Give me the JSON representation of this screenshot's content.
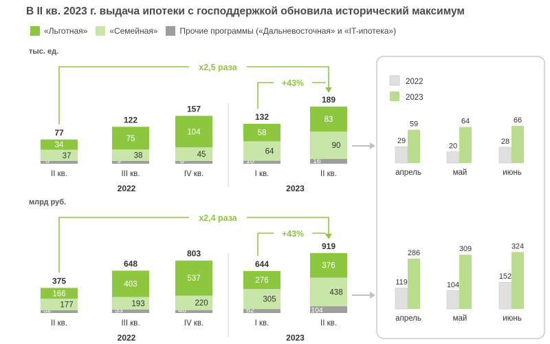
{
  "title": "В II кв. 2023 г. выдача ипотеки с господдержкой обновила исторический максимум",
  "legend": {
    "lgot": "«Льготная»",
    "fam": "«Семейная»",
    "other": "Прочие программы («Дальневосточная» и «IT-ипотека»)"
  },
  "colors": {
    "lgot": "#8dc63f",
    "fam": "#c8e6a8",
    "other": "#9e9e9e",
    "y2022": "#e0e0e0",
    "y2023": "#b9dc8f",
    "accent": "#8dc63f",
    "border": "#bdbdbd",
    "arrow": "#c0c0c0"
  },
  "chart_data": [
    {
      "type": "bar",
      "unit": "тыс. ед.",
      "categories": [
        "II кв.",
        "III кв.",
        "IV кв.",
        "I кв.",
        "II кв."
      ],
      "years": [
        {
          "label": "2022",
          "span": [
            0,
            2
          ]
        },
        {
          "label": "2023",
          "span": [
            3,
            4
          ]
        }
      ],
      "series": [
        {
          "name": "«Прочие программы»",
          "values": [
            6,
            9,
            8,
            10,
            16
          ]
        },
        {
          "name": "«Семейная»",
          "values": [
            37,
            38,
            45,
            64,
            90
          ]
        },
        {
          "name": "«Льготная»",
          "values": [
            34,
            75,
            104,
            58,
            83
          ]
        }
      ],
      "totals": [
        77,
        122,
        157,
        132,
        189
      ],
      "annotations": [
        {
          "text": "х2,5 раза",
          "from": 0,
          "to": 4
        },
        {
          "text": "+43%",
          "from": 3,
          "to": 4
        }
      ]
    },
    {
      "type": "bar",
      "unit": "млрд руб.",
      "categories": [
        "II кв.",
        "III кв.",
        "IV кв.",
        "I кв.",
        "II кв."
      ],
      "years": [
        {
          "label": "2022",
          "span": [
            0,
            2
          ]
        },
        {
          "label": "2023",
          "span": [
            3,
            4
          ]
        }
      ],
      "series": [
        {
          "name": "«Прочие программы»",
          "values": [
            32,
            53,
            46,
            62,
            104
          ]
        },
        {
          "name": "«Семейная»",
          "values": [
            177,
            193,
            220,
            305,
            438
          ]
        },
        {
          "name": "«Льготная»",
          "values": [
            166,
            403,
            537,
            276,
            376
          ]
        }
      ],
      "totals": [
        375,
        648,
        803,
        644,
        919
      ],
      "annotations": [
        {
          "text": "х2,4 раза",
          "from": 0,
          "to": 4
        },
        {
          "text": "+43%",
          "from": 3,
          "to": 4
        }
      ]
    },
    {
      "type": "bar",
      "categories": [
        "апрель",
        "май",
        "июнь"
      ],
      "series": [
        {
          "name": "2022",
          "values": [
            29,
            20,
            28
          ]
        },
        {
          "name": "2023",
          "values": [
            59,
            64,
            66
          ]
        }
      ]
    },
    {
      "type": "bar",
      "categories": [
        "апрель",
        "май",
        "июнь"
      ],
      "series": [
        {
          "name": "2022",
          "values": [
            119,
            104,
            152
          ]
        },
        {
          "name": "2023",
          "values": [
            286,
            309,
            324
          ]
        }
      ]
    }
  ]
}
